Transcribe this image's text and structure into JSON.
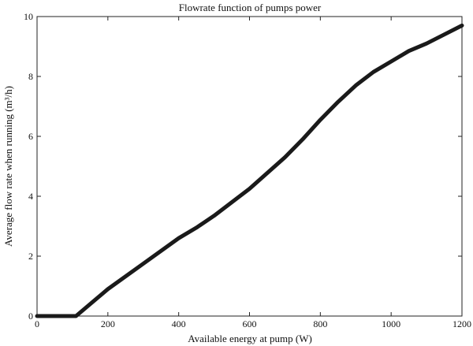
{
  "chart_data": {
    "type": "line",
    "title": "Flowrate function of pumps power",
    "xlabel": "Available energy at pump (W)",
    "ylabel": "Average flow rate when running (m³/h)",
    "xlim": [
      0,
      1200
    ],
    "ylim": [
      0,
      10
    ],
    "xticks": [
      "0",
      "200",
      "400",
      "600",
      "800",
      "1000",
      "1200"
    ],
    "yticks": [
      "0",
      "2",
      "4",
      "6",
      "8",
      "10"
    ],
    "grid": false,
    "line_color": "#1a1a1a",
    "series": [
      {
        "x": [
          0,
          110,
          200,
          300,
          400,
          450,
          500,
          600,
          700,
          750,
          800,
          850,
          900,
          950,
          1000,
          1050,
          1100,
          1150,
          1200
        ],
        "y": [
          0,
          0,
          0.9,
          1.75,
          2.6,
          2.95,
          3.35,
          4.25,
          5.3,
          5.9,
          6.55,
          7.15,
          7.7,
          8.15,
          8.5,
          8.85,
          9.1,
          9.4,
          9.7
        ]
      }
    ]
  }
}
